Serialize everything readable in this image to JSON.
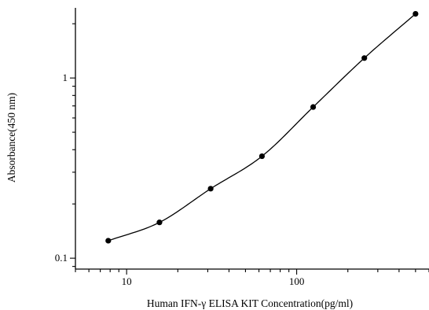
{
  "chart_data": {
    "type": "scatter",
    "title": "",
    "xlabel": "Human IFN-γ ELISA KIT Concentration(pg/ml)",
    "ylabel": "Absorbance(450 nm)",
    "xscale": "log",
    "yscale": "log",
    "xlim": [
      5,
      600
    ],
    "ylim": [
      0.087,
      2.45
    ],
    "x_ticks": [
      {
        "value": 10,
        "label": "10"
      },
      {
        "value": 100,
        "label": "100"
      }
    ],
    "y_ticks": [
      {
        "value": 0.1,
        "label": "0.1"
      },
      {
        "value": 1,
        "label": "1"
      }
    ],
    "grid": false,
    "legend": "none",
    "series": [
      {
        "points": [
          {
            "x": 7.8,
            "y": 0.125
          },
          {
            "x": 15.6,
            "y": 0.158
          },
          {
            "x": 31.2,
            "y": 0.243
          },
          {
            "x": 62.5,
            "y": 0.368
          },
          {
            "x": 125,
            "y": 0.69
          },
          {
            "x": 250,
            "y": 1.29
          },
          {
            "x": 500,
            "y": 2.27
          }
        ],
        "fit": "4PL",
        "color": "#000000"
      }
    ]
  }
}
